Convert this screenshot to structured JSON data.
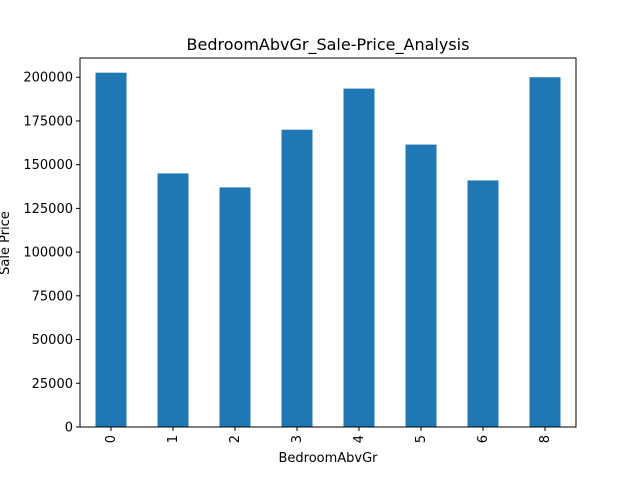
{
  "chart_data": {
    "type": "bar",
    "title": "BedroomAbvGr_Sale-Price_Analysis",
    "xlabel": "BedroomAbvGr",
    "ylabel": "Sale Price",
    "categories": [
      "0",
      "1",
      "2",
      "3",
      "4",
      "5",
      "6",
      "8"
    ],
    "values": [
      202600,
      145000,
      137000,
      170000,
      193500,
      161500,
      141000,
      200000
    ],
    "ylim": [
      0,
      211000
    ],
    "yticks": [
      0,
      25000,
      50000,
      75000,
      100000,
      125000,
      150000,
      175000,
      200000
    ],
    "ytick_labels": [
      "0",
      "25000",
      "50000",
      "75000",
      "100000",
      "125000",
      "150000",
      "175000",
      "200000"
    ],
    "bar_color": "#1f77b4",
    "grid": false,
    "legend": false
  }
}
